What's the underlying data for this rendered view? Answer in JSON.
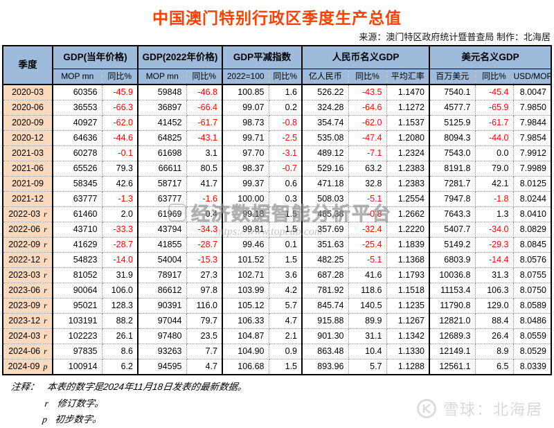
{
  "page": {
    "title": "中国澳门特别行政区季度生产总值",
    "source_credit": "来源：澳门特区政府统计暨普查局  制作：北海居"
  },
  "chart_data": {
    "type": "table",
    "title": "中国澳门特别行政区季度生产总值",
    "quarter_header": "季度",
    "column_groups": [
      {
        "label": "GDP(当年价格)",
        "subcolumns": [
          "MOP mn",
          "同比%"
        ]
      },
      {
        "label": "GDP(2022年价格)",
        "subcolumns": [
          "MOP mn",
          "同比%"
        ]
      },
      {
        "label": "GDP平减指数",
        "subcolumns": [
          "2022=100",
          "同比%"
        ]
      },
      {
        "label": "人民币名义GDP",
        "subcolumns": [
          "亿人民币",
          "同比%",
          "平均汇率"
        ]
      },
      {
        "label": "美元名义GDP",
        "subcolumns": [
          "百万美元",
          "同比%",
          "USD/MOP"
        ]
      }
    ],
    "rows": [
      {
        "quarter": "2020-03",
        "flag": "",
        "values": [
          "60356",
          "-45.9",
          "59848",
          "-46.8",
          "100.85",
          "1.6",
          "526.22",
          "-43.5",
          "1.1470",
          "7540.1",
          "-45.4",
          "8.0047"
        ]
      },
      {
        "quarter": "2020-06",
        "flag": "",
        "values": [
          "36553",
          "-66.3",
          "36897",
          "-66.4",
          "99.07",
          "0.2",
          "324.28",
          "-64.6",
          "1.1272",
          "4577.7",
          "-65.9",
          "7.9850"
        ]
      },
      {
        "quarter": "2020-09",
        "flag": "",
        "values": [
          "40927",
          "-62.0",
          "41452",
          "-61.7",
          "98.73",
          "-0.8",
          "354.74",
          "-62.0",
          "1.1537",
          "5125.9",
          "-61.7",
          "7.9844"
        ]
      },
      {
        "quarter": "2020-12",
        "flag": "",
        "values": [
          "64636",
          "-44.6",
          "64825",
          "-43.1",
          "99.71",
          "-2.5",
          "535.08",
          "-47.4",
          "1.2080",
          "8094.3",
          "-44.0",
          "7.9854"
        ]
      },
      {
        "quarter": "2021-03",
        "flag": "",
        "values": [
          "60278",
          "-0.1",
          "61698",
          "3.1",
          "97.70",
          "-3.1",
          "489.12",
          "-7.1",
          "1.2324",
          "7543.0",
          "0.0",
          "7.9912"
        ]
      },
      {
        "quarter": "2021-06",
        "flag": "",
        "values": [
          "65526",
          "79.3",
          "66611",
          "80.5",
          "98.37",
          "-0.7",
          "529.16",
          "63.2",
          "1.2383",
          "8191.8",
          "79.0",
          "7.9989"
        ]
      },
      {
        "quarter": "2021-09",
        "flag": "",
        "values": [
          "58345",
          "42.6",
          "58717",
          "41.7",
          "99.37",
          "0.6",
          "471.18",
          "32.8",
          "1.2383",
          "7281.7",
          "42.1",
          "8.0125"
        ]
      },
      {
        "quarter": "2021-12",
        "flag": "",
        "values": [
          "63777",
          "-1.3",
          "63777",
          "-1.6",
          "100.00",
          "0.3",
          "508.03",
          "-5.1",
          "1.2554",
          "7947.8",
          "-1.8",
          "8.0244"
        ]
      },
      {
        "quarter": "2022-03",
        "flag": "r",
        "values": [
          "61460",
          "2.0",
          "61969",
          "0.4",
          "99.18",
          "1.5",
          "485.38",
          "-0.8",
          "1.2662",
          "7643.3",
          "1.3",
          "8.0410"
        ]
      },
      {
        "quarter": "2022-06",
        "flag": "r",
        "values": [
          "43710",
          "-33.3",
          "43794",
          "-34.3",
          "99.81",
          "1.5",
          "357.69",
          "-32.4",
          "1.2220",
          "5407.7",
          "-34.0",
          "8.0829"
        ]
      },
      {
        "quarter": "2022-09",
        "flag": "r",
        "values": [
          "41629",
          "-28.7",
          "41855",
          "-28.7",
          "99.46",
          "0.1",
          "351.63",
          "-25.4",
          "1.1839",
          "5149.2",
          "-29.3",
          "8.0845"
        ]
      },
      {
        "quarter": "2022-12",
        "flag": "r",
        "values": [
          "54823",
          "-14.0",
          "54004",
          "-15.3",
          "101.52",
          "1.5",
          "482.25",
          "-5.1",
          "1.1368",
          "6803.9",
          "-14.4",
          "8.0576"
        ]
      },
      {
        "quarter": "2023-03",
        "flag": "r",
        "values": [
          "81052",
          "31.9",
          "78917",
          "27.3",
          "102.71",
          "3.6",
          "687.28",
          "41.6",
          "1.1793",
          "10036.8",
          "31.3",
          "8.0755"
        ]
      },
      {
        "quarter": "2023-06",
        "flag": "r",
        "values": [
          "90064",
          "106.0",
          "86612",
          "97.8",
          "103.99",
          "4.2",
          "781.92",
          "118.6",
          "1.1518",
          "11153.4",
          "106.3",
          "8.0750"
        ]
      },
      {
        "quarter": "2023-09",
        "flag": "r",
        "values": [
          "95021",
          "128.3",
          "90391",
          "116.0",
          "105.12",
          "5.7",
          "845.74",
          "140.5",
          "1.1235",
          "11790.8",
          "129.0",
          "8.0589"
        ]
      },
      {
        "quarter": "2023-12",
        "flag": "r",
        "values": [
          "103191",
          "88.2",
          "97044",
          "79.7",
          "106.33",
          "4.7",
          "915.88",
          "89.9",
          "1.1267",
          "12821.0",
          "88.4",
          "8.0486"
        ]
      },
      {
        "quarter": "2024-03",
        "flag": "r",
        "values": [
          "102223",
          "26.1",
          "97480",
          "23.5",
          "104.87",
          "2.1",
          "901.30",
          "31.1",
          "1.1342",
          "12689.3",
          "26.4",
          "8.0559"
        ]
      },
      {
        "quarter": "2024-06",
        "flag": "r",
        "values": [
          "97835",
          "8.6",
          "93263",
          "7.7",
          "104.90",
          "0.9",
          "863.48",
          "10.4",
          "1.1330",
          "12149.1",
          "8.9",
          "8.0529"
        ]
      },
      {
        "quarter": "2024-09",
        "flag": "p",
        "values": [
          "100914",
          "6.2",
          "94595",
          "4.7",
          "106.68",
          "1.5",
          "893.96",
          "5.7",
          "1.1288",
          "12561.1",
          "6.5",
          "8.0339"
        ]
      }
    ]
  },
  "watermark": {
    "logo_text": "top",
    "line1": "经济数据智能分析平台",
    "line2": "https://www.topedb.com"
  },
  "notes": {
    "label": "注释：",
    "line1": "本表的数字是2024年11月18日发表的最新数据。",
    "r_symbol": "r",
    "r_text": "修订数字。",
    "p_symbol": "p",
    "p_text": "初步数字。"
  },
  "footer_logo": {
    "text": "雪球：北海居"
  },
  "colors": {
    "title": "#FF4000",
    "header_bg": "#9FBBDC",
    "quarter_bg": "#FAD9BD",
    "negative": "#FF0000"
  }
}
